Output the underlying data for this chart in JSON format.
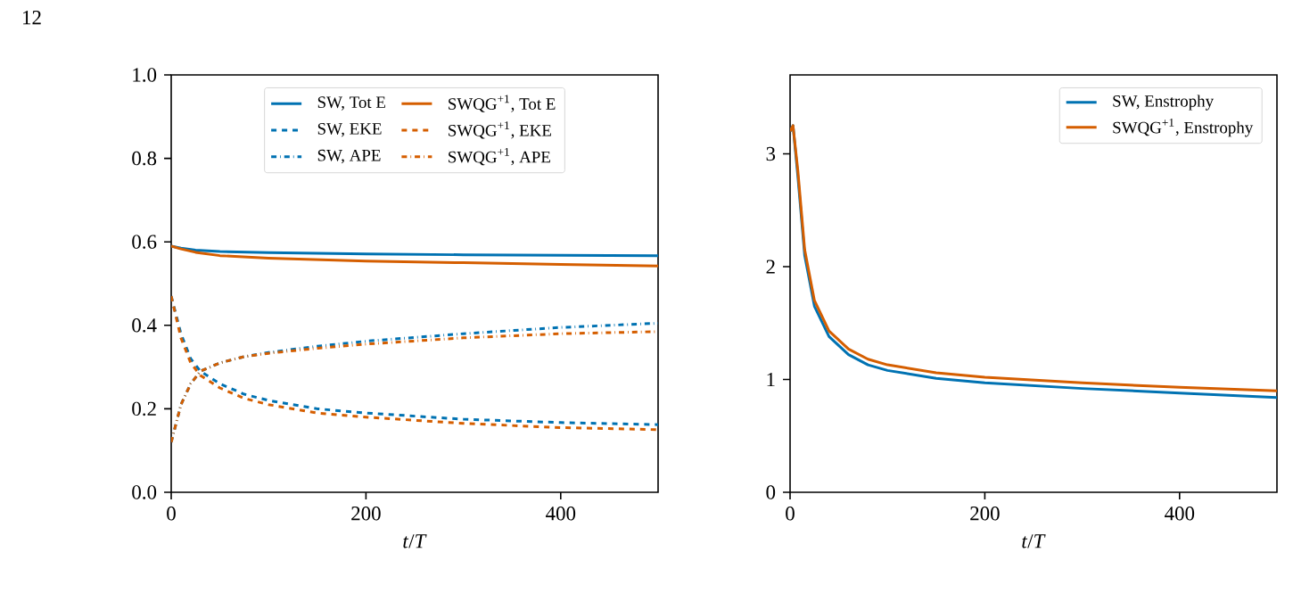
{
  "chart_data": [
    {
      "type": "line",
      "xlabel": "*t*/*T*",
      "xlim": [
        0,
        500
      ],
      "xticks": [
        0,
        200,
        400
      ],
      "ylim": [
        0,
        1.0
      ],
      "yticks": [
        {
          "value": 0,
          "label": "0.0"
        },
        0.2,
        0.4,
        0.6,
        0.8,
        {
          "value": 1,
          "label": "1.0"
        }
      ],
      "legend": "top",
      "grid": false,
      "marker": "none",
      "annotations": [
        "12"
      ],
      "series": [
        {
          "name": "SW, Tot E",
          "color": "#0072b2",
          "line_style": "solid",
          "x": [
            0,
            10,
            25,
            50,
            100,
            200,
            300,
            400,
            500
          ],
          "values": [
            0.59,
            0.585,
            0.58,
            0.577,
            0.574,
            0.571,
            0.569,
            0.568,
            0.567
          ]
        },
        {
          "name": "SW, EKE",
          "color": "#0072b2",
          "line_style": "dashed",
          "x": [
            0,
            10,
            20,
            30,
            50,
            75,
            100,
            150,
            200,
            300,
            400,
            500
          ],
          "values": [
            0.47,
            0.38,
            0.32,
            0.29,
            0.26,
            0.235,
            0.22,
            0.2,
            0.19,
            0.175,
            0.167,
            0.162
          ]
        },
        {
          "name": "SW, APE",
          "color": "#0072b2",
          "line_style": "dashdot",
          "x": [
            0,
            10,
            20,
            30,
            50,
            75,
            100,
            150,
            200,
            300,
            400,
            500
          ],
          "values": [
            0.12,
            0.21,
            0.26,
            0.29,
            0.31,
            0.325,
            0.335,
            0.35,
            0.362,
            0.38,
            0.395,
            0.405
          ]
        },
        {
          "name": "SWQG$^{+1}$, Tot E",
          "color": "#d55e00",
          "line_style": "solid",
          "x": [
            0,
            10,
            25,
            50,
            100,
            200,
            300,
            400,
            500
          ],
          "values": [
            0.59,
            0.583,
            0.575,
            0.567,
            0.561,
            0.554,
            0.55,
            0.546,
            0.542
          ]
        },
        {
          "name": "SWQG$^{+1}$, EKE",
          "color": "#d55e00",
          "line_style": "dashed",
          "x": [
            0,
            10,
            20,
            30,
            50,
            75,
            100,
            150,
            200,
            300,
            400,
            500
          ],
          "values": [
            0.47,
            0.37,
            0.31,
            0.28,
            0.25,
            0.225,
            0.21,
            0.19,
            0.18,
            0.165,
            0.155,
            0.15
          ]
        },
        {
          "name": "SWQG$^{+1}$, APE",
          "color": "#d55e00",
          "line_style": "dashdot",
          "x": [
            0,
            10,
            20,
            30,
            50,
            75,
            100,
            150,
            200,
            300,
            400,
            500
          ],
          "values": [
            0.12,
            0.21,
            0.26,
            0.29,
            0.31,
            0.325,
            0.333,
            0.345,
            0.355,
            0.37,
            0.38,
            0.385
          ]
        }
      ]
    },
    {
      "type": "line",
      "xlabel": "*t*/*T*",
      "xlim": [
        0,
        500
      ],
      "xticks": [
        0,
        200,
        400
      ],
      "ylim": [
        0,
        3.7
      ],
      "yticks": [
        0,
        1,
        2,
        3
      ],
      "legend": "top right",
      "grid": false,
      "marker": "none",
      "series": [
        {
          "name": "SW, Enstrophy",
          "color": "#0072b2",
          "line_style": "solid",
          "x": [
            0,
            3,
            8,
            15,
            25,
            40,
            60,
            80,
            100,
            150,
            200,
            300,
            400,
            500
          ],
          "values": [
            3.2,
            3.25,
            2.8,
            2.1,
            1.65,
            1.38,
            1.22,
            1.13,
            1.08,
            1.01,
            0.97,
            0.92,
            0.88,
            0.84
          ]
        },
        {
          "name": "SWQG$^{+1}$, Enstrophy",
          "color": "#d55e00",
          "line_style": "solid",
          "x": [
            0,
            3,
            8,
            15,
            25,
            40,
            60,
            80,
            100,
            150,
            200,
            300,
            400,
            500
          ],
          "values": [
            3.2,
            3.25,
            2.85,
            2.15,
            1.7,
            1.43,
            1.27,
            1.18,
            1.13,
            1.06,
            1.02,
            0.97,
            0.93,
            0.9
          ]
        }
      ]
    }
  ]
}
